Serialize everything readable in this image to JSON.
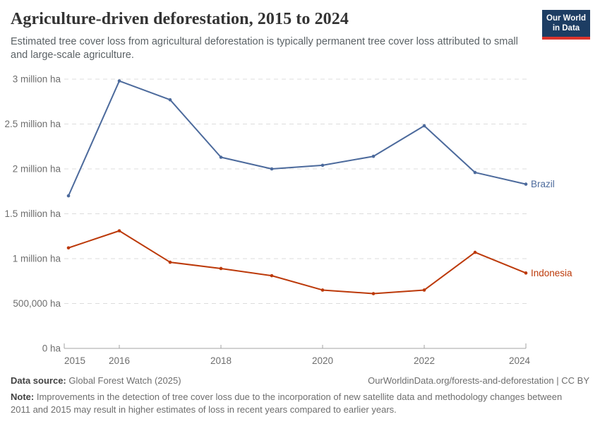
{
  "header": {
    "title": "Agriculture-driven deforestation, 2015 to 2024",
    "subtitle": "Estimated tree cover loss from agricultural deforestation is typically permanent tree cover loss attributed to small and large-scale agriculture.",
    "logo": {
      "line1": "Our World",
      "line2": "in Data",
      "bg_color": "#1d3d63",
      "accent_color": "#dc342c"
    }
  },
  "chart_data": {
    "type": "line",
    "title": "Agriculture-driven deforestation, 2015 to 2024",
    "x": [
      2015,
      2016,
      2017,
      2018,
      2019,
      2020,
      2021,
      2022,
      2023,
      2024
    ],
    "series": [
      {
        "name": "Brazil",
        "color": "#4C6A9C",
        "values": [
          1.7,
          2.98,
          2.77,
          2.13,
          2.0,
          2.04,
          2.14,
          2.48,
          1.96,
          1.83
        ]
      },
      {
        "name": "Indonesia",
        "color": "#BC3909",
        "values": [
          1.12,
          1.31,
          0.96,
          0.89,
          0.81,
          0.65,
          0.61,
          0.65,
          1.07,
          0.84
        ]
      }
    ],
    "unit": "million ha",
    "ylim": [
      0,
      3
    ],
    "yticks": [
      {
        "value": 0,
        "label": "0 ha"
      },
      {
        "value": 0.5,
        "label": "500,000 ha"
      },
      {
        "value": 1,
        "label": "1 million ha"
      },
      {
        "value": 1.5,
        "label": "1.5 million ha"
      },
      {
        "value": 2,
        "label": "2 million ha"
      },
      {
        "value": 2.5,
        "label": "2.5 million ha"
      },
      {
        "value": 3,
        "label": "3 million ha"
      }
    ],
    "xticks": [
      2015,
      2016,
      2018,
      2020,
      2022,
      2024
    ],
    "grid": "horizontal-dashed",
    "legend_position": "line-end-labels"
  },
  "colors": {
    "grid": "#dcdcdc",
    "axis": "#a3a3a3",
    "tick_text": "#6e6e6e"
  },
  "footer": {
    "datasource_label": "Data source:",
    "datasource_value": " Global Forest Watch (2025)",
    "link": "OurWorldinData.org/forests-and-deforestation",
    "separator": " | ",
    "license": "CC BY",
    "note_label": "Note:",
    "note_text": " Improvements in the detection of tree cover loss due to the incorporation of new satellite data and methodology changes between 2011 and 2015 may result in higher estimates of loss in recent years compared to earlier years."
  }
}
